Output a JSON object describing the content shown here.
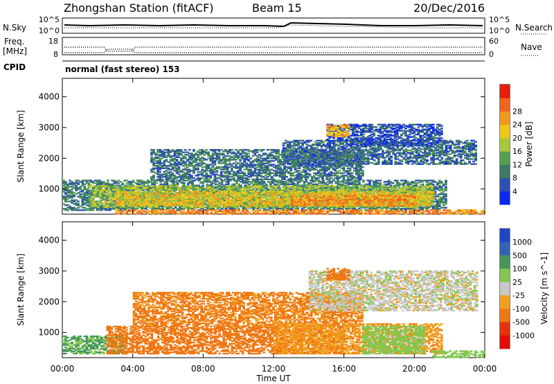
{
  "title": {
    "station": "Zhongshan Station (fitACF)",
    "beam": "Beam 15",
    "date": "20/Dec/2016"
  },
  "header_panels": {
    "nsky_label": "N.Sky",
    "nsearch_label": "N.Search",
    "freq_label_1": "Freq.",
    "freq_label_2": "[MHz]",
    "nave_label": "Nave",
    "cpid_label": "CPID",
    "cpid_text": "normal (fast stereo) 153",
    "noise_ticks_left": [
      "10^5",
      "10^0"
    ],
    "noise_ticks_right": [
      "10^5",
      "10^0"
    ],
    "freq_ticks": [
      "18",
      "8"
    ],
    "nave_ticks": [
      "60",
      "0"
    ]
  },
  "chart_data": [
    {
      "type": "heatmap",
      "panel": "power",
      "ylabel": "Slant Range [km]",
      "xlabel": "",
      "x_tick_labels": [],
      "y_tick_labels": [
        "1000",
        "2000",
        "3000",
        "4000"
      ],
      "xlim": [
        0,
        24
      ],
      "ylim": [
        180,
        4600
      ],
      "colorbar": {
        "label": "Power [dB]",
        "ticks": [
          4,
          8,
          12,
          16,
          20,
          24,
          28
        ],
        "colors": [
          "#0a28f0",
          "#2f4fb4",
          "#3c7a64",
          "#52a050",
          "#a8c83c",
          "#f0c818",
          "#f09a1e",
          "#f0641e",
          "#e81e0a"
        ]
      },
      "regions": [
        {
          "t0": 0.0,
          "t1": 21.8,
          "r0": 300,
          "r1": 1300,
          "value": 10
        },
        {
          "t0": 1.5,
          "t1": 21.0,
          "r0": 400,
          "r1": 1100,
          "value": 17
        },
        {
          "t0": 3.0,
          "t1": 21.0,
          "r0": 450,
          "r1": 900,
          "value": 22
        },
        {
          "t0": 13.0,
          "t1": 20.0,
          "r0": 450,
          "r1": 800,
          "value": 27
        },
        {
          "t0": 3.0,
          "t1": 24.0,
          "r0": 180,
          "r1": 320,
          "value": 28
        },
        {
          "t0": 5.0,
          "t1": 17.0,
          "r0": 1300,
          "r1": 2300,
          "value": 9
        },
        {
          "t0": 12.5,
          "t1": 23.5,
          "r0": 1800,
          "r1": 2600,
          "value": 8
        },
        {
          "t0": 15.0,
          "t1": 21.5,
          "r0": 2400,
          "r1": 3100,
          "value": 6
        },
        {
          "t0": 15.0,
          "t1": 16.2,
          "r0": 2700,
          "r1": 3100,
          "value": 24
        }
      ]
    },
    {
      "type": "heatmap",
      "panel": "velocity",
      "ylabel": "Slant Range [km]",
      "xlabel": "Time UT",
      "x_tick_labels": [
        "00:00",
        "04:00",
        "08:00",
        "12:00",
        "16:00",
        "20:00",
        "00:00"
      ],
      "y_tick_labels": [
        "1000",
        "2000",
        "3000",
        "4000"
      ],
      "xlim": [
        0,
        24
      ],
      "ylim": [
        180,
        4600
      ],
      "colorbar": {
        "label": "Velocity [m s^-1]",
        "ticks": [
          1000,
          500,
          100,
          25,
          -25,
          -100,
          -500,
          -1000
        ],
        "colors": [
          "#1e46c8",
          "#3264b4",
          "#46965a",
          "#82c850",
          "#c8c8c8",
          "#f0a01e",
          "#f07814",
          "#e6320a",
          "#e60a0a"
        ]
      },
      "regions": [
        {
          "t0": 0.0,
          "t1": 3.5,
          "r0": 300,
          "r1": 900,
          "value": 110
        },
        {
          "t0": 2.5,
          "t1": 16.0,
          "r0": 300,
          "r1": 1200,
          "value": -300
        },
        {
          "t0": 4.0,
          "t1": 17.0,
          "r0": 1200,
          "r1": 2300,
          "value": -120
        },
        {
          "t0": 12.0,
          "t1": 21.5,
          "r0": 300,
          "r1": 1300,
          "value": -80
        },
        {
          "t0": 17.0,
          "t1": 20.5,
          "r0": 300,
          "r1": 1200,
          "value": 60
        },
        {
          "t0": 14.0,
          "t1": 23.5,
          "r0": 1700,
          "r1": 3000,
          "value": 0
        },
        {
          "t0": 15.0,
          "t1": 16.2,
          "r0": 2700,
          "r1": 3100,
          "value": -150
        },
        {
          "t0": 21.0,
          "t1": 24.0,
          "r0": 180,
          "r1": 400,
          "value": 60
        }
      ]
    }
  ]
}
